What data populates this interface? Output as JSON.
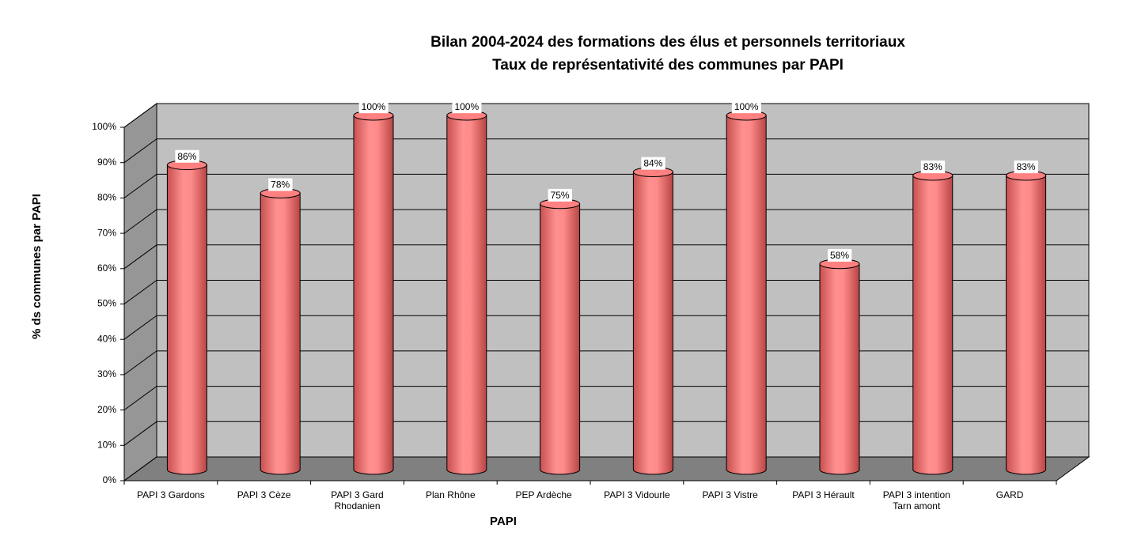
{
  "chart_data": {
    "type": "bar3d",
    "title": "Bilan 2004-2024 des formations des élus et personnels territoriaux",
    "subtitle": "Taux de représentativité des communes par PAPI",
    "x_label": "PAPI",
    "y_label": "% ds communes par PAPI",
    "categories": [
      "PAPI 3 Gardons",
      "PAPI 3 Cèze",
      "PAPI 3 Gard Rhodanien",
      "Plan Rhône",
      "PEP Ardèche",
      "PAPI 3 Vidourle",
      "PAPI 3 Vistre",
      "PAPI 3 Hérault",
      "PAPI 3 intention Tarn amont",
      "GARD"
    ],
    "values": [
      86,
      78,
      100,
      100,
      75,
      84,
      100,
      58,
      83,
      83
    ],
    "value_labels": [
      "86%",
      "78%",
      "100%",
      "100%",
      "75%",
      "84%",
      "100%",
      "58%",
      "83%",
      "83%"
    ],
    "color": "#ff8080",
    "ylim": [
      0,
      100
    ],
    "yticks": [
      {
        "value": 0,
        "label": "0%"
      },
      {
        "value": 10,
        "label": "10%"
      },
      {
        "value": 20,
        "label": "20%"
      },
      {
        "value": 30,
        "label": "30%"
      },
      {
        "value": 40,
        "label": "40%"
      },
      {
        "value": 50,
        "label": "50%"
      },
      {
        "value": 60,
        "label": "60%"
      },
      {
        "value": 70,
        "label": "70%"
      },
      {
        "value": 80,
        "label": "80%"
      },
      {
        "value": 90,
        "label": "90%"
      },
      {
        "value": 100,
        "label": "100%"
      }
    ],
    "grid": true
  }
}
